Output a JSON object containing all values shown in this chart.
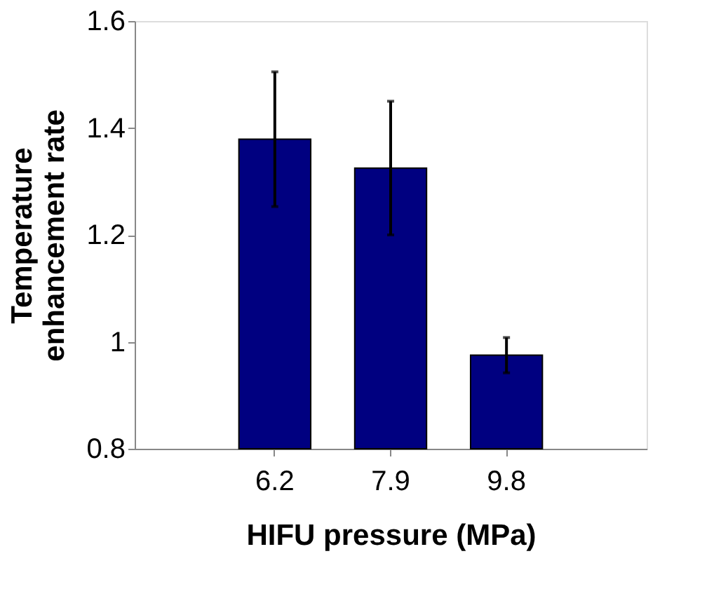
{
  "chart_data": {
    "type": "bar",
    "xlabel": "HIFU pressure (MPa)",
    "ylabel": "Temperature enhancement rate",
    "categories": [
      "6.2",
      "7.9",
      "9.8"
    ],
    "values": [
      1.379,
      1.325,
      0.975
    ],
    "errors": [
      0.126,
      0.125,
      0.033
    ],
    "color": "#000080",
    "ylim": [
      0.8,
      1.6
    ],
    "yticks": [
      0.8,
      1,
      1.2,
      1.4,
      1.6
    ],
    "grid": false
  }
}
